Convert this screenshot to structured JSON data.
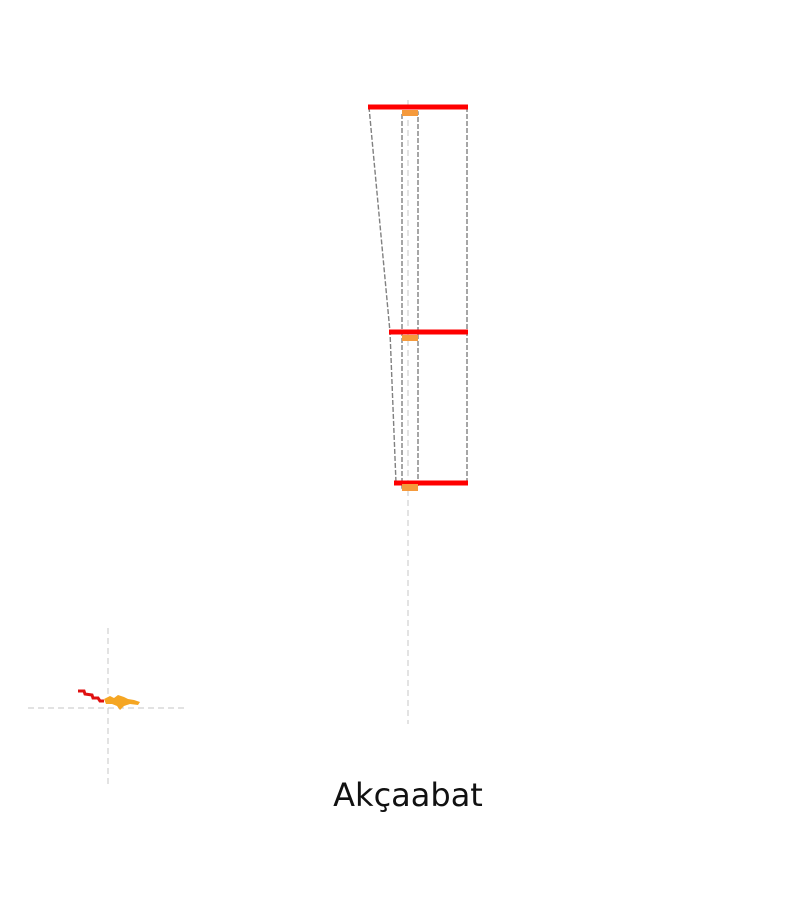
{
  "diagram": {
    "place_name": "Akçaabat",
    "colors": {
      "outline": "#808080",
      "section_bar": "#ff0000",
      "core_marker": "#f59a3c",
      "axis_line": "#d0d0d0",
      "map_red": "#e01010",
      "map_orange": "#f5a623"
    }
  }
}
